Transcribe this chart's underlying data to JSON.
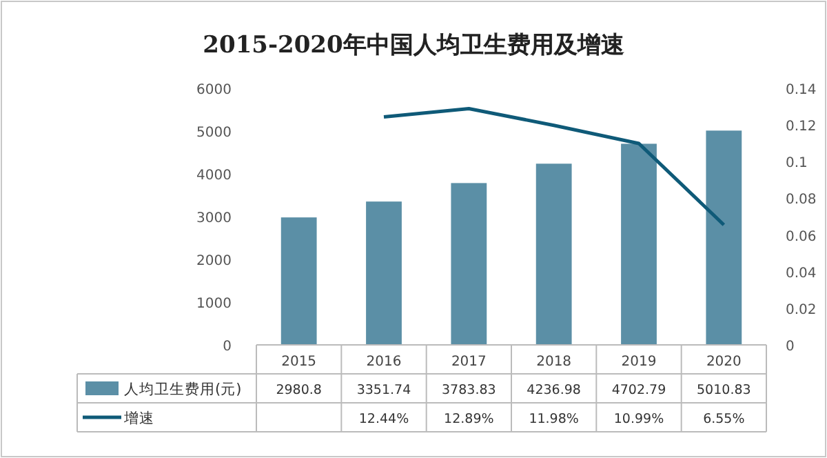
{
  "chart_data": {
    "type": "bar",
    "title": "2015-2020年中国人均卫生费用及增速",
    "categories": [
      "2015",
      "2016",
      "2017",
      "2018",
      "2019",
      "2020"
    ],
    "series": [
      {
        "name": "人均卫生费用(元)",
        "color": "#5b8fa6",
        "values": [
          2980.8,
          3351.74,
          3783.83,
          4236.98,
          4702.79,
          5010.83
        ],
        "value_labels": [
          "2980.8",
          "3351.74",
          "3783.83",
          "4236.98",
          "4702.79",
          "5010.83"
        ]
      },
      {
        "name": "增速",
        "type": "line",
        "axis": "y2",
        "color": "#0f5a78",
        "values": [
          null,
          0.1244,
          0.1289,
          0.1198,
          0.1099,
          0.0655
        ],
        "value_labels": [
          null,
          "12.44%",
          "12.89%",
          "11.98%",
          "10.99%",
          "6.55%"
        ]
      }
    ],
    "ylim": [
      0,
      6000
    ],
    "yticks": [
      0,
      1000,
      2000,
      3000,
      4000,
      5000,
      6000
    ],
    "y2lim": [
      0,
      0.14
    ],
    "y2ticks": [
      0,
      0.02,
      0.04,
      0.06,
      0.08,
      0.1,
      0.12,
      0.14
    ],
    "legend": "bottom",
    "marker": "none",
    "line_style": "solid"
  }
}
